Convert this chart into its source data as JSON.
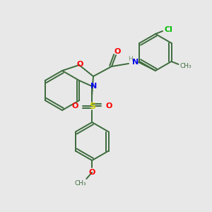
{
  "bg_color": "#e8e8e8",
  "bond_color": "#3d6b3d",
  "atom_colors": {
    "O": "#ff0000",
    "N": "#0000ee",
    "S": "#cccc00",
    "Cl": "#00bb00",
    "C": "#3d6b3d",
    "H": "#7a9a7a"
  },
  "figsize": [
    3.0,
    3.0
  ],
  "dpi": 100,
  "lw": 1.4,
  "ring_r": 28
}
